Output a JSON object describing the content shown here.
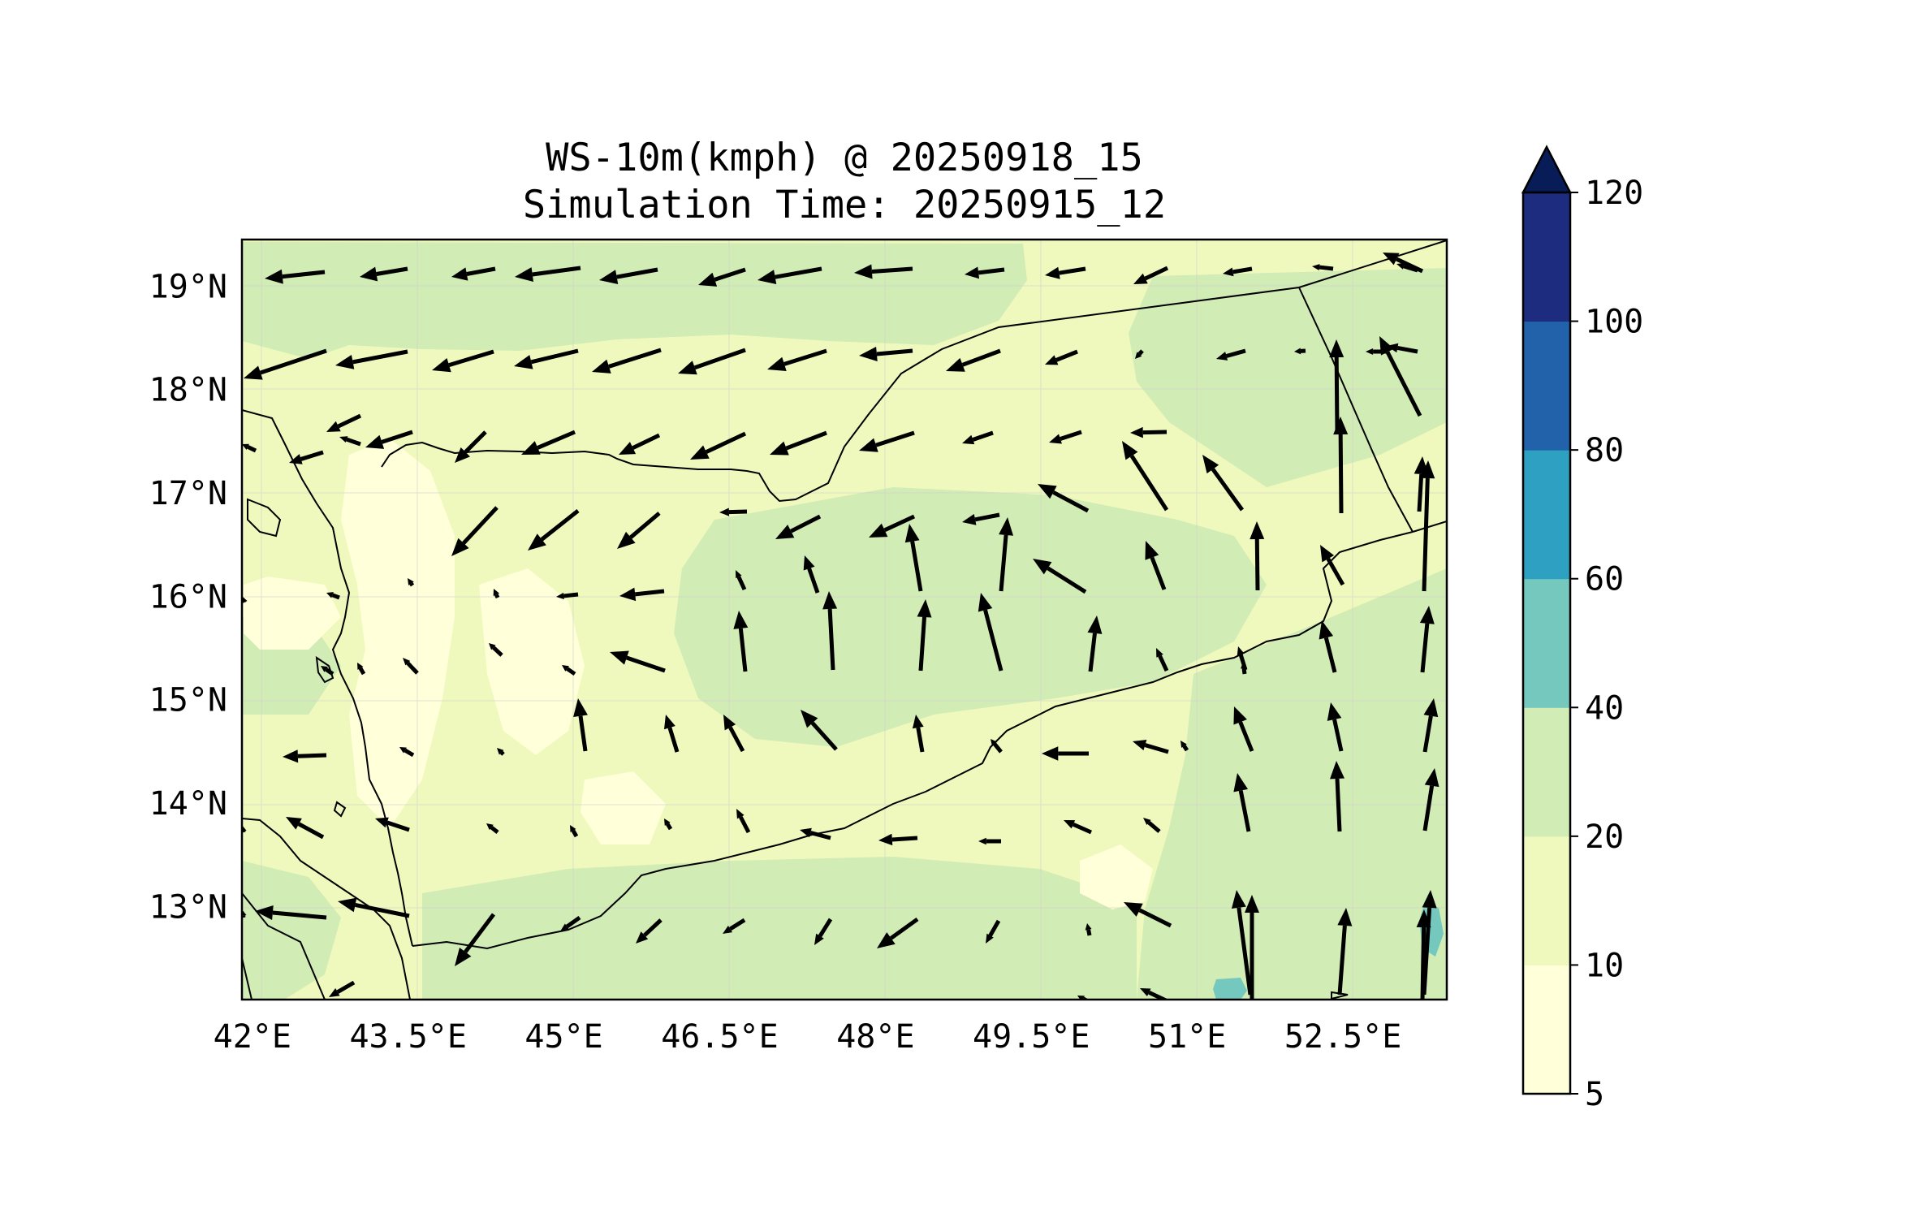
{
  "map": {
    "title_line1": "WS-10m(kmph) @ 20250918_15",
    "title_line2": "Simulation Time: 20250915_12",
    "extent": {
      "lon": [
        41.9,
        53.5
      ],
      "lat": [
        12.1,
        19.45
      ]
    },
    "lon_ticks": [
      {
        "value": 42.0,
        "label": "42°E"
      },
      {
        "value": 43.5,
        "label": "43.5°E"
      },
      {
        "value": 45.0,
        "label": "45°E"
      },
      {
        "value": 46.5,
        "label": "46.5°E"
      },
      {
        "value": 48.0,
        "label": "48°E"
      },
      {
        "value": 49.5,
        "label": "49.5°E"
      },
      {
        "value": 51.0,
        "label": "51°E"
      },
      {
        "value": 52.5,
        "label": "52.5°E"
      }
    ],
    "lat_ticks": [
      {
        "value": 19,
        "label": "19°N"
      },
      {
        "value": 18,
        "label": "18°N"
      },
      {
        "value": 17,
        "label": "17°N"
      },
      {
        "value": 16,
        "label": "16°N"
      },
      {
        "value": 15,
        "label": "15°N"
      },
      {
        "value": 14,
        "label": "14°N"
      },
      {
        "value": 13,
        "label": "13°N"
      }
    ],
    "colors": {
      "c5_10": "#ffffd9",
      "c10_20": "#f0f9bd",
      "c20_40": "#d1ecb5",
      "c40_60": "#75c8bd",
      "c60_80": "#2ea1c2",
      "c80_100": "#2162aa",
      "c100_120": "#1d2c7f",
      "over": "#081d58"
    }
  },
  "colorbar": {
    "levels": [
      {
        "value": 5,
        "label": "5"
      },
      {
        "value": 10,
        "label": "10"
      },
      {
        "value": 20,
        "label": "20"
      },
      {
        "value": 40,
        "label": "40"
      },
      {
        "value": 60,
        "label": "60"
      },
      {
        "value": 80,
        "label": "80"
      },
      {
        "value": 100,
        "label": "100"
      },
      {
        "value": 120,
        "label": "120"
      }
    ],
    "extend": "max"
  }
}
